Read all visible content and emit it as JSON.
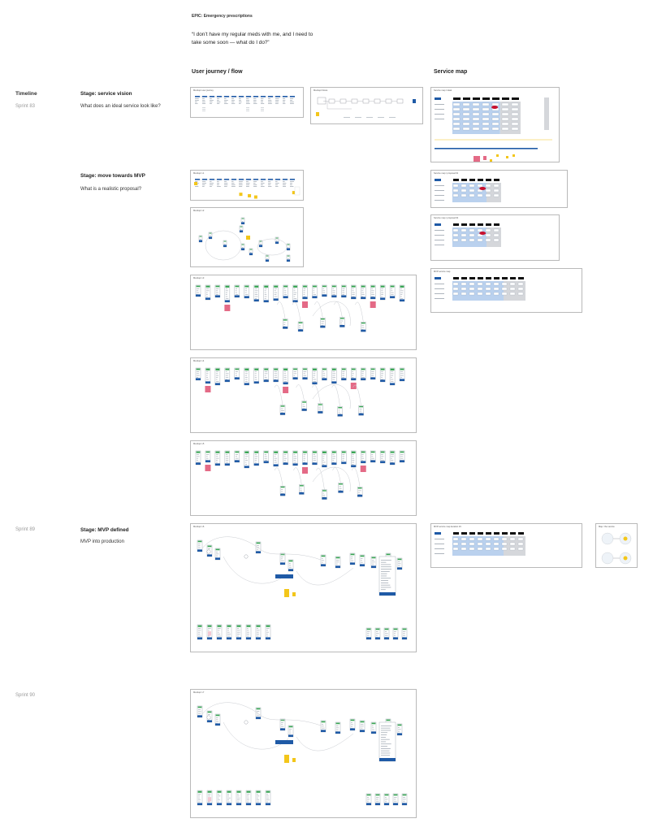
{
  "epic": "EPIC: Emergency prescriptions",
  "quote": "“I don’t have my regular meds with me, and I need to take some soon — what do I do?”",
  "columns": {
    "journey": "User journey / flow",
    "service": "Service map"
  },
  "timeline": {
    "heading": "Timeline",
    "sprints": [
      "Sprint 83",
      "Sprint 89",
      "Sprint 90"
    ]
  },
  "stages": [
    {
      "title": "Stage: service vision",
      "question": "What does an ideal service look like?"
    },
    {
      "title": "Stage: move towards MVP",
      "question": "What is a realistic proposal?"
    },
    {
      "title": "Stage: MVP defined",
      "question": "MVP into production"
    }
  ],
  "boards": {
    "journey": [
      {
        "title": "Mockup/ user journey",
        "kind": "row"
      },
      {
        "title": "Mockup/ Flows",
        "kind": "flow"
      },
      {
        "title": "Mockup/ v1",
        "kind": "row-sticky"
      },
      {
        "title": "Mockup/ v2",
        "kind": "loop"
      },
      {
        "title": "Mockup/ v3",
        "kind": "screens"
      },
      {
        "title": "Mockup/ v4",
        "kind": "screens"
      },
      {
        "title": "Mockup/ v5",
        "kind": "screens"
      },
      {
        "title": "Mockup/ v6",
        "kind": "mvp"
      },
      {
        "title": "Mockup/ v7",
        "kind": "mvp"
      }
    ],
    "service": [
      {
        "title": "Service map / ideal",
        "kind": "map-big"
      },
      {
        "title": "Service map / proposal #1",
        "kind": "map"
      },
      {
        "title": "Service map / proposal #2",
        "kind": "map"
      },
      {
        "title": "MVP service map",
        "kind": "map-wide"
      },
      {
        "title": "MVP service map iteration #1",
        "kind": "map-wide"
      },
      {
        "title": "Map / the service",
        "kind": "circles"
      }
    ]
  },
  "colors": {
    "blue": "#1f5aa6",
    "light_blue": "#a9c5ea",
    "green": "#3aa655",
    "yellow": "#f3c61a",
    "pink": "#e46a86",
    "grey": "#d5d7db",
    "black": "#111111",
    "red": "#c8102e"
  }
}
